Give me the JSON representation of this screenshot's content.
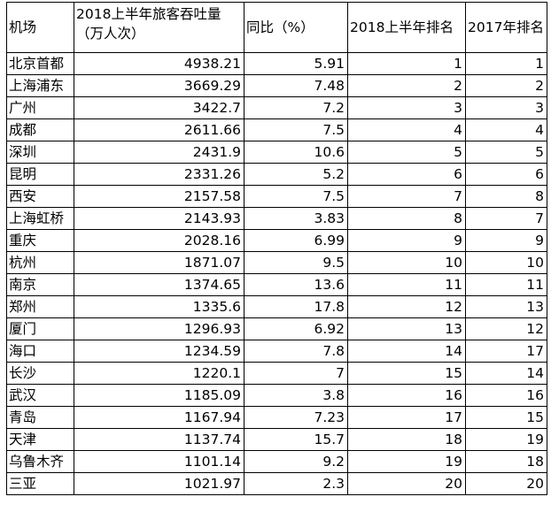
{
  "table": {
    "headers": {
      "airport": "机场",
      "passengers_line1": "2018上半年旅客吞吐量",
      "passengers_line2": "（万人次）",
      "yoy": "同比（%）",
      "rank_2018h1": "2018上半年排名",
      "rank_2017": "2017年排名"
    },
    "rows": [
      {
        "airport": "北京首都",
        "passengers": "4938.21",
        "yoy": "5.91",
        "rank_2018h1": "1",
        "rank_2017": "1"
      },
      {
        "airport": "上海浦东",
        "passengers": "3669.29",
        "yoy": "7.48",
        "rank_2018h1": "2",
        "rank_2017": "2"
      },
      {
        "airport": "广州",
        "passengers": "3422.7",
        "yoy": "7.2",
        "rank_2018h1": "3",
        "rank_2017": "3"
      },
      {
        "airport": "成都",
        "passengers": "2611.66",
        "yoy": "7.5",
        "rank_2018h1": "4",
        "rank_2017": "4"
      },
      {
        "airport": "深圳",
        "passengers": "2431.9",
        "yoy": "10.6",
        "rank_2018h1": "5",
        "rank_2017": "5"
      },
      {
        "airport": "昆明",
        "passengers": "2331.26",
        "yoy": "5.2",
        "rank_2018h1": "6",
        "rank_2017": "6"
      },
      {
        "airport": "西安",
        "passengers": "2157.58",
        "yoy": "7.5",
        "rank_2018h1": "7",
        "rank_2017": "8"
      },
      {
        "airport": "上海虹桥",
        "passengers": "2143.93",
        "yoy": "3.83",
        "rank_2018h1": "8",
        "rank_2017": "7"
      },
      {
        "airport": "重庆",
        "passengers": "2028.16",
        "yoy": "6.99",
        "rank_2018h1": "9",
        "rank_2017": "9"
      },
      {
        "airport": "杭州",
        "passengers": "1871.07",
        "yoy": "9.5",
        "rank_2018h1": "10",
        "rank_2017": "10"
      },
      {
        "airport": "南京",
        "passengers": "1374.65",
        "yoy": "13.6",
        "rank_2018h1": "11",
        "rank_2017": "11"
      },
      {
        "airport": "郑州",
        "passengers": "1335.6",
        "yoy": "17.8",
        "rank_2018h1": "12",
        "rank_2017": "13"
      },
      {
        "airport": "厦门",
        "passengers": "1296.93",
        "yoy": "6.92",
        "rank_2018h1": "13",
        "rank_2017": "12"
      },
      {
        "airport": "海口",
        "passengers": "1234.59",
        "yoy": "7.8",
        "rank_2018h1": "14",
        "rank_2017": "17"
      },
      {
        "airport": "长沙",
        "passengers": "1220.1",
        "yoy": "7",
        "rank_2018h1": "15",
        "rank_2017": "14"
      },
      {
        "airport": "武汉",
        "passengers": "1185.09",
        "yoy": "3.8",
        "rank_2018h1": "16",
        "rank_2017": "16"
      },
      {
        "airport": "青岛",
        "passengers": "1167.94",
        "yoy": "7.23",
        "rank_2018h1": "17",
        "rank_2017": "15"
      },
      {
        "airport": "天津",
        "passengers": "1137.74",
        "yoy": "15.7",
        "rank_2018h1": "18",
        "rank_2017": "19"
      },
      {
        "airport": "乌鲁木齐",
        "passengers": "1101.14",
        "yoy": "9.2",
        "rank_2018h1": "19",
        "rank_2017": "18"
      },
      {
        "airport": "三亚",
        "passengers": "1021.97",
        "yoy": "2.3",
        "rank_2018h1": "20",
        "rank_2017": "20"
      }
    ]
  }
}
